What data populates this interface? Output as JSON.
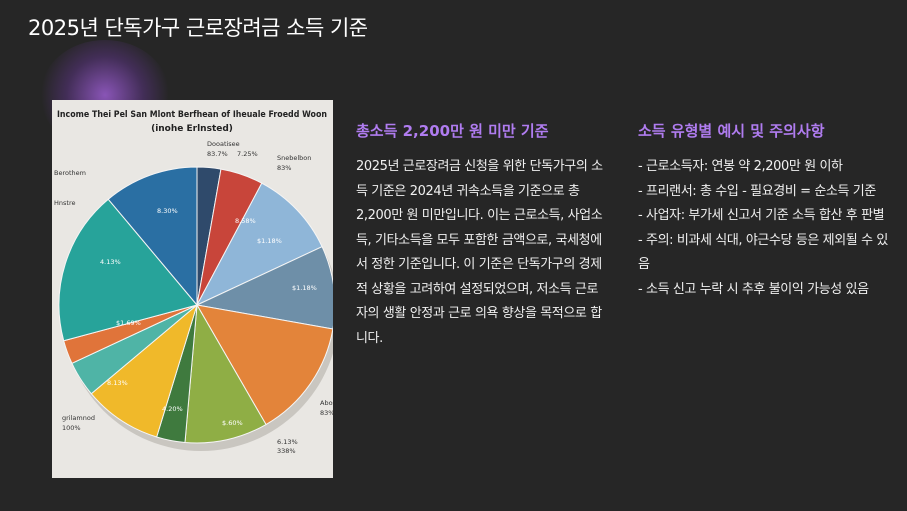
{
  "title": "2025년 단독가구 근로장려금 소득 기준",
  "image": {
    "title": "Income Thei Pel San Mlont Berfhean of Iheuale Froedd Woon",
    "subtitle": "(inohe Erlnsted)",
    "labels": [
      "Dooatisee",
      "83.7%",
      "7.25%",
      "Snebelbon",
      "83%",
      "8.58%",
      "$1.18%",
      "$1.18%",
      "8.30%",
      "4.13%",
      "$1.69%",
      "8.13%",
      "4.20%",
      "$.60%",
      "Abostem",
      "83%",
      "grilamnod",
      "100%",
      "Berothem",
      "Hnstre",
      "6.13%",
      "338%"
    ]
  },
  "left": {
    "heading": "총소득 2,200만 원 미만 기준",
    "paragraph": "2025년 근로장려금 신청을 위한 단독가구의 소득 기준은 2024년 귀속소득을 기준으로 총 2,200만 원 미만입니다. 이는 근로소득, 사업소득, 기타소득을 모두 포함한 금액으로, 국세청에서 정한 기준입니다. 이 기준은 단독가구의 경제적 상황을 고려하여 설정되었으며, 저소득 근로자의 생활 안정과 근로 의욕 향상을 목적으로 합니다."
  },
  "right": {
    "heading": "소득 유형별 예시 및 주의사항",
    "items": [
      "- 근로소득자: 연봉 약 2,200만 원 이하",
      "- 프리랜서: 총 수입 - 필요경비 = 순소득 기준",
      "- 사업자: 부가세 신고서 기준 소득 합산 후 판별",
      "- 주의: 비과세 식대, 야근수당 등은 제외될 수 있음",
      "- 소득 신고 누락 시 추후 불이익 가능성 있음"
    ]
  }
}
